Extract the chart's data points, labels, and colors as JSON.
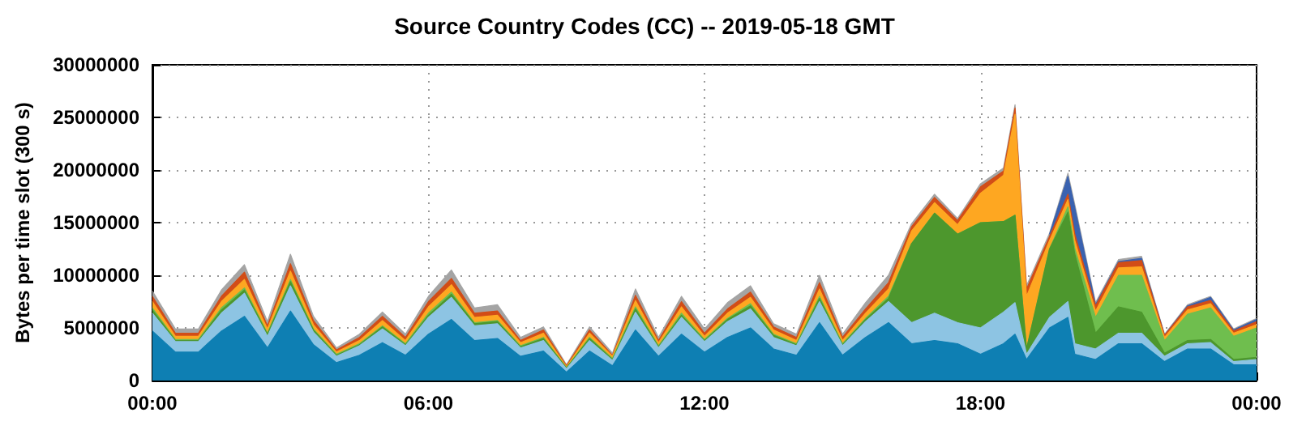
{
  "chart_data": {
    "type": "area",
    "stacked": true,
    "title": "Source Country Codes (CC) -- 2019-05-18 GMT",
    "ylabel": "Bytes per time slot (300 s)",
    "x": [
      0,
      0.5,
      1,
      1.5,
      2,
      2.5,
      3,
      3.5,
      4,
      4.5,
      5,
      5.5,
      6,
      6.5,
      7,
      7.5,
      8,
      8.5,
      9,
      9.5,
      10,
      10.5,
      11,
      11.5,
      12,
      12.5,
      13,
      13.5,
      14,
      14.5,
      15,
      15.5,
      16,
      16.5,
      17,
      17.5,
      18,
      18.5,
      18.75,
      19,
      19.5,
      19.9,
      20.05,
      20.5,
      21,
      21.5,
      22,
      22.5,
      23,
      23.5,
      24
    ],
    "series": [
      {
        "color": "#0e7fb3",
        "values": [
          4700000,
          2700000,
          2700000,
          4700000,
          6100000,
          3100000,
          6600000,
          3400000,
          1700000,
          2400000,
          3600000,
          2400000,
          4400000,
          5800000,
          3800000,
          4000000,
          2300000,
          2800000,
          800000,
          2800000,
          1400000,
          4800000,
          2300000,
          4400000,
          2700000,
          4100000,
          5000000,
          3000000,
          2400000,
          5500000,
          2400000,
          4100000,
          5500000,
          3500000,
          3800000,
          3500000,
          2500000,
          3500000,
          4400000,
          2000000,
          5000000,
          6000000,
          2500000,
          2000000,
          3500000,
          3500000,
          1800000,
          3000000,
          3000000,
          1500000,
          1500000
        ]
      },
      {
        "color": "#8dc4e3",
        "values": [
          1700000,
          1000000,
          1000000,
          1700000,
          2200000,
          1100000,
          2400000,
          1200000,
          600000,
          900000,
          1300000,
          900000,
          1600000,
          2100000,
          1400000,
          1400000,
          800000,
          1000000,
          300000,
          1000000,
          500000,
          1700000,
          800000,
          1600000,
          1000000,
          1500000,
          1800000,
          1100000,
          900000,
          2000000,
          900000,
          1500000,
          2000000,
          2000000,
          2600000,
          2000000,
          2500000,
          3000000,
          3000000,
          500000,
          1000000,
          1500000,
          1000000,
          1000000,
          1000000,
          1000000,
          500000,
          500000,
          600000,
          300000,
          500000
        ]
      },
      {
        "color": "#4d972d",
        "values": [
          300000,
          100000,
          100000,
          300000,
          300000,
          200000,
          400000,
          200000,
          100000,
          100000,
          200000,
          100000,
          200000,
          300000,
          200000,
          200000,
          100000,
          200000,
          100000,
          200000,
          100000,
          300000,
          100000,
          200000,
          100000,
          200000,
          300000,
          200000,
          100000,
          300000,
          100000,
          200000,
          300000,
          7500000,
          9500000,
          8400000,
          10000000,
          8600000,
          8300000,
          500000,
          6500000,
          8500000,
          8500000,
          1500000,
          2500000,
          2000000,
          300000,
          300000,
          300000,
          200000,
          200000
        ]
      },
      {
        "color": "#6fbe4e",
        "values": [
          200000,
          100000,
          100000,
          200000,
          200000,
          100000,
          200000,
          100000,
          100000,
          100000,
          100000,
          100000,
          200000,
          200000,
          100000,
          100000,
          100000,
          100000,
          0,
          100000,
          100000,
          200000,
          100000,
          200000,
          100000,
          100000,
          200000,
          100000,
          100000,
          200000,
          100000,
          100000,
          200000,
          0,
          0,
          0,
          0,
          0,
          0,
          0,
          0,
          500000,
          500000,
          1500000,
          3000000,
          3500000,
          1200000,
          2500000,
          3000000,
          2200000,
          2800000
        ]
      },
      {
        "color": "#fea721",
        "values": [
          600000,
          300000,
          300000,
          600000,
          800000,
          400000,
          800000,
          400000,
          200000,
          300000,
          500000,
          300000,
          600000,
          700000,
          500000,
          500000,
          300000,
          400000,
          100000,
          400000,
          200000,
          600000,
          300000,
          600000,
          300000,
          500000,
          600000,
          400000,
          300000,
          700000,
          300000,
          500000,
          700000,
          1200000,
          1000000,
          900000,
          2800000,
          4400000,
          9600000,
          5000000,
          800000,
          700000,
          800000,
          600000,
          700000,
          800000,
          300000,
          400000,
          400000,
          300000,
          300000
        ]
      },
      {
        "color": "#d24d17",
        "values": [
          500000,
          300000,
          300000,
          500000,
          700000,
          300000,
          700000,
          400000,
          200000,
          300000,
          400000,
          300000,
          500000,
          600000,
          400000,
          400000,
          200000,
          300000,
          100000,
          300000,
          100000,
          500000,
          200000,
          500000,
          300000,
          400000,
          500000,
          300000,
          300000,
          600000,
          300000,
          400000,
          600000,
          400000,
          500000,
          400000,
          600000,
          400000,
          600000,
          700000,
          400000,
          500000,
          600000,
          500000,
          500000,
          600000,
          200000,
          300000,
          300000,
          200000,
          300000
        ]
      },
      {
        "color": "#3a62b0",
        "values": [
          null,
          null,
          null,
          null,
          null,
          null,
          null,
          null,
          null,
          null,
          null,
          null,
          null,
          null,
          null,
          null,
          null,
          null,
          null,
          null,
          null,
          null,
          null,
          null,
          null,
          null,
          null,
          null,
          null,
          null,
          null,
          null,
          null,
          null,
          null,
          null,
          null,
          null,
          null,
          null,
          200000,
          1700000,
          2500000,
          100000,
          100000,
          200000,
          0,
          100000,
          300000,
          100000,
          200000
        ]
      },
      {
        "color": "#a4a4a4",
        "values": [
          500000,
          400000,
          400000,
          600000,
          700000,
          400000,
          900000,
          400000,
          200000,
          300000,
          400000,
          300000,
          500000,
          800000,
          500000,
          600000,
          300000,
          300000,
          100000,
          300000,
          200000,
          600000,
          300000,
          500000,
          400000,
          600000,
          600000,
          300000,
          300000,
          700000,
          300000,
          600000,
          700000,
          300000,
          300000,
          200000,
          300000,
          300000,
          300000,
          300000,
          100000,
          300000,
          300000,
          200000,
          200000,
          200000,
          100000,
          100000,
          100000,
          100000,
          100000
        ]
      }
    ],
    "xlim": [
      0,
      24
    ],
    "xticks": [
      {
        "value": 0,
        "label": "00:00"
      },
      {
        "value": 6,
        "label": "06:00"
      },
      {
        "value": 12,
        "label": "12:00"
      },
      {
        "value": 18,
        "label": "18:00"
      },
      {
        "value": 24,
        "label": "00:00"
      }
    ],
    "ylim": [
      0,
      30000000
    ],
    "yticks": [
      0,
      5000000,
      10000000,
      15000000,
      20000000,
      25000000,
      30000000
    ],
    "grid": true
  }
}
